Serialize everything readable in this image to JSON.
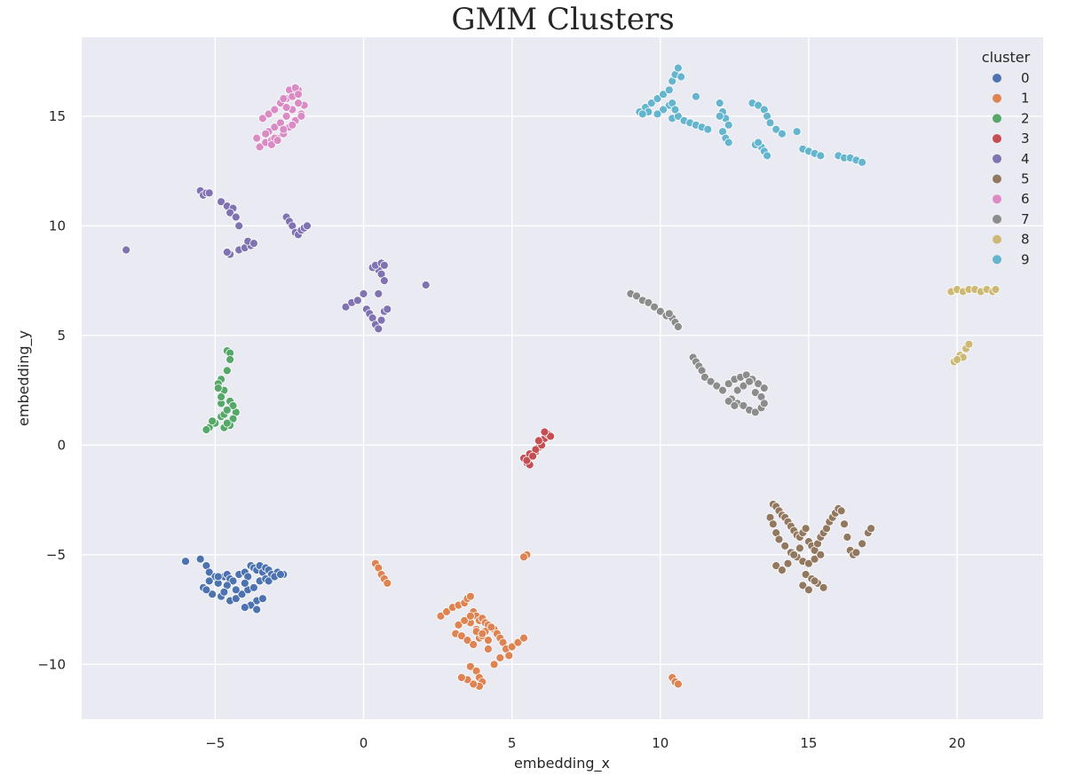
{
  "chart_data": {
    "type": "scatter",
    "title": "GMM Clusters",
    "xlabel": "embedding_x",
    "ylabel": "embedding_y",
    "xlim": [
      -9.5,
      22.9
    ],
    "ylim": [
      -12.5,
      18.6
    ],
    "xticks": [
      -5,
      0,
      5,
      10,
      15,
      20
    ],
    "yticks": [
      -10,
      -5,
      0,
      5,
      10,
      15
    ],
    "xtick_labels": [
      "−5",
      "0",
      "5",
      "10",
      "15",
      "20"
    ],
    "ytick_labels": [
      "−10",
      "−5",
      "0",
      "5",
      "10",
      "15"
    ],
    "grid": true,
    "background": "#EAEAF2",
    "legend": {
      "title": "cluster",
      "placement": "top-right",
      "entries": [
        "0",
        "1",
        "2",
        "3",
        "4",
        "5",
        "6",
        "7",
        "8",
        "9"
      ]
    },
    "series": [
      {
        "name": "0",
        "color": "#4C72B0",
        "x": [
          -6.0,
          -5.5,
          -5.3,
          -5.2,
          -5.0,
          -4.9,
          -4.7,
          -4.6,
          -4.5,
          -4.4,
          -4.2,
          -4.0,
          -3.9,
          -3.8,
          -3.7,
          -3.6,
          -3.5,
          -3.4,
          -3.3,
          -3.2,
          -3.1,
          -2.9,
          -2.7,
          -5.4,
          -5.1,
          -4.8,
          -4.5,
          -4.3,
          -4.1,
          -3.9,
          -3.7,
          -3.5,
          -3.3,
          -3.6,
          -3.8,
          -4.0,
          -3.6,
          -3.4,
          -5.2,
          -4.9,
          -4.6,
          -4.3,
          -4.0,
          -3.2,
          -3.0,
          -2.8,
          -5.3,
          -4.7
        ],
        "y": [
          -5.3,
          -5.2,
          -5.5,
          -5.8,
          -6.0,
          -6.3,
          -6.0,
          -5.9,
          -6.1,
          -6.2,
          -5.9,
          -5.8,
          -6.0,
          -5.5,
          -5.6,
          -5.7,
          -5.5,
          -5.8,
          -5.6,
          -5.7,
          -5.9,
          -5.8,
          -5.9,
          -6.5,
          -6.8,
          -6.9,
          -7.1,
          -7.0,
          -6.8,
          -6.6,
          -6.5,
          -6.2,
          -6.1,
          -7.1,
          -7.3,
          -7.4,
          -7.5,
          -7.0,
          -6.2,
          -6.0,
          -6.4,
          -6.6,
          -6.3,
          -6.2,
          -6.0,
          -5.9,
          -6.6,
          -6.7
        ]
      },
      {
        "name": "1",
        "color": "#DD8452",
        "x": [
          0.4,
          0.5,
          0.6,
          0.7,
          0.8,
          5.5,
          5.4,
          2.6,
          2.8,
          3.0,
          3.2,
          3.4,
          3.5,
          3.6,
          3.7,
          3.8,
          3.9,
          4.0,
          4.1,
          4.2,
          4.3,
          4.4,
          4.5,
          4.6,
          4.7,
          4.8,
          4.9,
          5.0,
          5.2,
          5.4,
          3.1,
          3.3,
          3.5,
          3.7,
          3.9,
          4.1,
          4.3,
          3.6,
          3.8,
          4.0,
          4.2,
          3.2,
          3.4,
          3.6,
          3.8,
          4.0,
          4.2,
          3.6,
          3.8,
          3.9,
          4.4,
          4.6,
          10.4,
          10.5,
          10.6,
          4.0,
          3.9,
          3.7,
          3.5,
          3.3
        ],
        "y": [
          -5.4,
          -5.6,
          -5.9,
          -6.1,
          -6.3,
          -5.0,
          -5.1,
          -7.8,
          -7.6,
          -7.4,
          -7.3,
          -7.2,
          -7.0,
          -6.9,
          -7.6,
          -7.8,
          -8.0,
          -7.9,
          -8.1,
          -8.2,
          -8.3,
          -8.4,
          -8.6,
          -8.8,
          -9.0,
          -9.3,
          -9.6,
          -9.2,
          -9.0,
          -8.8,
          -8.6,
          -8.7,
          -8.9,
          -9.1,
          -8.8,
          -8.5,
          -8.3,
          -8.1,
          -8.4,
          -8.7,
          -8.9,
          -8.2,
          -8.0,
          -7.8,
          -8.5,
          -8.6,
          -9.3,
          -10.1,
          -10.3,
          -10.6,
          -10.0,
          -9.7,
          -10.6,
          -10.8,
          -10.9,
          -10.8,
          -11.0,
          -10.9,
          -10.7,
          -10.6
        ]
      },
      {
        "name": "2",
        "color": "#55A868",
        "x": [
          -4.6,
          -4.5,
          -4.5,
          -4.6,
          -4.8,
          -4.9,
          -4.7,
          -4.5,
          -4.3,
          -4.4,
          -4.8,
          -5.0,
          -5.2,
          -5.3,
          -5.1,
          -4.7,
          -4.5,
          -4.4,
          -4.6,
          -4.8,
          -4.9,
          -4.8,
          -4.7,
          -4.6
        ],
        "y": [
          4.3,
          4.2,
          3.9,
          3.4,
          3.0,
          2.8,
          2.5,
          2.0,
          1.5,
          1.2,
          1.3,
          1.0,
          0.8,
          0.7,
          1.1,
          1.4,
          0.9,
          1.8,
          1.6,
          1.9,
          2.6,
          2.2,
          0.8,
          1.0
        ]
      },
      {
        "name": "3",
        "color": "#C44E52",
        "x": [
          5.4,
          5.5,
          5.6,
          5.7,
          5.8,
          5.9,
          6.0,
          6.1,
          6.2,
          6.3,
          5.6,
          5.8,
          6.0,
          5.5,
          5.7,
          5.9,
          6.1
        ],
        "y": [
          -0.6,
          -0.8,
          -0.9,
          -0.5,
          -0.3,
          -0.1,
          0.1,
          0.3,
          0.5,
          0.4,
          -0.4,
          -0.2,
          0.0,
          -0.7,
          -0.5,
          0.2,
          0.6
        ]
      },
      {
        "name": "4",
        "color": "#8172B2",
        "x": [
          -8.0,
          -5.5,
          -5.4,
          -5.3,
          -5.2,
          -4.8,
          -4.6,
          -4.4,
          -4.5,
          -4.3,
          -4.2,
          -4.5,
          -4.6,
          -4.2,
          -4.0,
          -3.8,
          -3.9,
          -3.7,
          -2.6,
          -2.5,
          -2.4,
          -2.3,
          -2.2,
          -2.1,
          -2.0,
          -1.9,
          -0.6,
          -0.4,
          -0.2,
          0.0,
          0.1,
          0.2,
          0.3,
          0.4,
          0.5,
          0.6,
          0.7,
          0.8,
          0.5,
          0.6,
          0.7,
          0.3,
          0.4,
          0.5,
          0.6,
          0.7,
          2.1
        ],
        "y": [
          8.9,
          11.6,
          11.4,
          11.5,
          11.5,
          11.1,
          10.9,
          10.8,
          10.6,
          10.4,
          10.0,
          8.7,
          8.8,
          8.9,
          9.0,
          9.1,
          9.3,
          9.2,
          10.4,
          10.2,
          10.0,
          9.7,
          9.6,
          9.8,
          9.9,
          10.0,
          6.3,
          6.5,
          6.6,
          6.9,
          6.2,
          6.0,
          5.8,
          5.5,
          5.3,
          5.7,
          6.1,
          6.2,
          8.0,
          7.8,
          7.5,
          8.1,
          8.2,
          6.9,
          8.3,
          8.2,
          7.3
        ]
      },
      {
        "name": "5",
        "color": "#937860",
        "x": [
          13.8,
          13.9,
          14.0,
          14.1,
          14.2,
          14.3,
          14.4,
          14.5,
          14.6,
          14.7,
          14.8,
          14.9,
          15.0,
          15.1,
          15.2,
          15.3,
          15.4,
          15.5,
          15.6,
          15.7,
          15.8,
          15.9,
          16.0,
          16.1,
          16.2,
          16.3,
          16.4,
          16.5,
          16.6,
          16.8,
          17.0,
          17.1,
          13.7,
          13.8,
          13.9,
          14.0,
          14.2,
          14.4,
          14.6,
          14.8,
          15.0,
          15.2,
          15.4,
          13.9,
          14.1,
          14.3,
          14.5,
          14.7,
          14.9,
          15.1,
          15.3,
          15.5,
          14.8,
          15.0,
          15.2
        ],
        "y": [
          -2.7,
          -2.8,
          -3.0,
          -3.2,
          -3.3,
          -3.5,
          -3.7,
          -3.9,
          -4.1,
          -4.2,
          -4.0,
          -3.8,
          -4.4,
          -4.6,
          -4.8,
          -4.5,
          -4.2,
          -4.0,
          -3.8,
          -3.5,
          -3.3,
          -3.1,
          -2.9,
          -3.0,
          -3.6,
          -4.2,
          -4.8,
          -5.0,
          -4.9,
          -4.5,
          -4.0,
          -3.8,
          -3.3,
          -3.6,
          -4.0,
          -4.3,
          -4.6,
          -4.9,
          -5.1,
          -5.3,
          -5.4,
          -5.2,
          -5.0,
          -5.5,
          -5.7,
          -5.4,
          -5.0,
          -4.7,
          -5.9,
          -6.1,
          -6.3,
          -6.5,
          -6.4,
          -6.6,
          -6.2
        ]
      },
      {
        "name": "6",
        "color": "#DA8BC3",
        "x": [
          -3.5,
          -3.3,
          -3.1,
          -2.9,
          -2.7,
          -2.5,
          -2.3,
          -2.1,
          -2.0,
          -3.2,
          -3.0,
          -2.8,
          -2.6,
          -2.4,
          -2.2,
          -3.4,
          -3.2,
          -3.0,
          -2.8,
          -2.6,
          -2.4,
          -2.2,
          -3.6,
          -3.3,
          -3.0,
          -2.7,
          -2.4,
          -2.1,
          -3.1,
          -2.9,
          -2.7,
          -2.5,
          -2.3,
          -2.6,
          -2.4,
          -2.2
        ],
        "y": [
          13.6,
          13.8,
          13.9,
          14.0,
          14.2,
          14.5,
          14.8,
          15.1,
          15.5,
          14.3,
          14.5,
          14.7,
          15.0,
          15.3,
          15.6,
          14.9,
          15.1,
          15.3,
          15.6,
          15.8,
          16.0,
          16.2,
          14.0,
          14.2,
          14.0,
          14.4,
          14.6,
          15.0,
          13.7,
          13.9,
          15.8,
          16.2,
          16.3,
          15.4,
          15.9,
          16.0
        ]
      },
      {
        "name": "7",
        "color": "#8C8C8C",
        "x": [
          9.0,
          9.2,
          9.4,
          9.6,
          9.8,
          10.0,
          10.2,
          10.4,
          10.5,
          10.6,
          10.3,
          11.1,
          11.2,
          11.3,
          11.4,
          11.5,
          11.7,
          11.9,
          12.1,
          12.3,
          12.5,
          12.7,
          12.9,
          13.1,
          13.3,
          13.5,
          12.4,
          12.6,
          12.8,
          13.0,
          13.2,
          13.4,
          12.6,
          12.8,
          13.0,
          13.2,
          13.4,
          12.3,
          12.5,
          13.5
        ],
        "y": [
          6.9,
          6.8,
          6.6,
          6.5,
          6.3,
          6.1,
          5.9,
          5.8,
          5.6,
          5.4,
          6.0,
          4.0,
          3.8,
          3.6,
          3.4,
          3.1,
          2.9,
          2.7,
          2.5,
          2.8,
          3.0,
          3.1,
          3.2,
          3.0,
          2.8,
          2.6,
          2.1,
          1.9,
          1.8,
          1.6,
          1.5,
          1.7,
          2.5,
          2.7,
          2.9,
          2.4,
          2.2,
          2.0,
          1.8,
          1.9
        ]
      },
      {
        "name": "8",
        "color": "#CCB974",
        "x": [
          19.8,
          20.0,
          20.2,
          20.4,
          20.6,
          20.8,
          21.0,
          21.2,
          21.3,
          19.9,
          20.1,
          20.3,
          20.4,
          20.2,
          20.0
        ],
        "y": [
          7.0,
          7.1,
          7.0,
          7.1,
          7.1,
          7.0,
          7.1,
          7.0,
          7.1,
          3.8,
          4.1,
          4.4,
          4.6,
          4.0,
          3.9
        ]
      },
      {
        "name": "9",
        "color": "#64B5CD",
        "x": [
          9.3,
          9.5,
          9.7,
          9.9,
          10.1,
          10.3,
          10.4,
          10.5,
          10.6,
          10.7,
          10.3,
          10.1,
          9.9,
          9.6,
          9.4,
          10.4,
          10.6,
          10.8,
          11.0,
          11.2,
          11.4,
          11.6,
          12.0,
          12.1,
          12.2,
          12.3,
          12.1,
          12.2,
          12.3,
          12.0,
          13.1,
          13.3,
          13.5,
          13.6,
          13.7,
          13.9,
          14.1,
          13.4,
          13.5,
          13.6,
          13.2,
          13.3,
          14.6,
          14.8,
          15.0,
          15.2,
          15.4,
          16.0,
          16.2,
          16.4,
          16.6,
          16.8,
          10.4,
          10.5,
          11.2
        ],
        "y": [
          15.2,
          15.4,
          15.6,
          15.8,
          16.0,
          16.2,
          16.6,
          16.9,
          17.2,
          16.8,
          15.5,
          15.3,
          15.1,
          15.2,
          15.1,
          14.9,
          15.0,
          14.8,
          14.7,
          14.6,
          14.5,
          14.4,
          15.6,
          15.2,
          14.9,
          14.6,
          14.3,
          14.0,
          13.8,
          15.0,
          15.6,
          15.5,
          15.3,
          15.0,
          14.7,
          14.4,
          14.2,
          13.6,
          13.4,
          13.2,
          13.7,
          13.8,
          14.3,
          13.5,
          13.4,
          13.3,
          13.2,
          13.2,
          13.1,
          13.1,
          13.0,
          12.9,
          15.6,
          15.3,
          15.9
        ]
      }
    ]
  }
}
